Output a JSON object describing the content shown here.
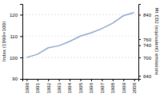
{
  "chart_data": {
    "type": "line",
    "x": [
      1990,
      1991,
      1992,
      1993,
      1994,
      1995,
      1996,
      1997,
      1998,
      1999,
      2000
    ],
    "values": [
      100,
      101.5,
      104.5,
      105.5,
      107.5,
      110.0,
      111.5,
      113.5,
      116.0,
      119.5,
      121.0
    ],
    "color": "#8fa8cc",
    "xlim": [
      1989.6,
      2000.4
    ],
    "xticks": [
      1990,
      1991,
      1992,
      1993,
      1994,
      1995,
      1996,
      1997,
      1998,
      1999,
      2000
    ],
    "ylim": [
      90,
      125
    ],
    "yticks": [
      90,
      100,
      110,
      120
    ],
    "y2lim": [
      630,
      875
    ],
    "y2ticks": [
      640,
      700,
      740,
      760,
      840
    ],
    "ylabel": "Index (1990=100)",
    "y2label": "Mt CO2 (equivalent) emissions",
    "grid": true
  }
}
